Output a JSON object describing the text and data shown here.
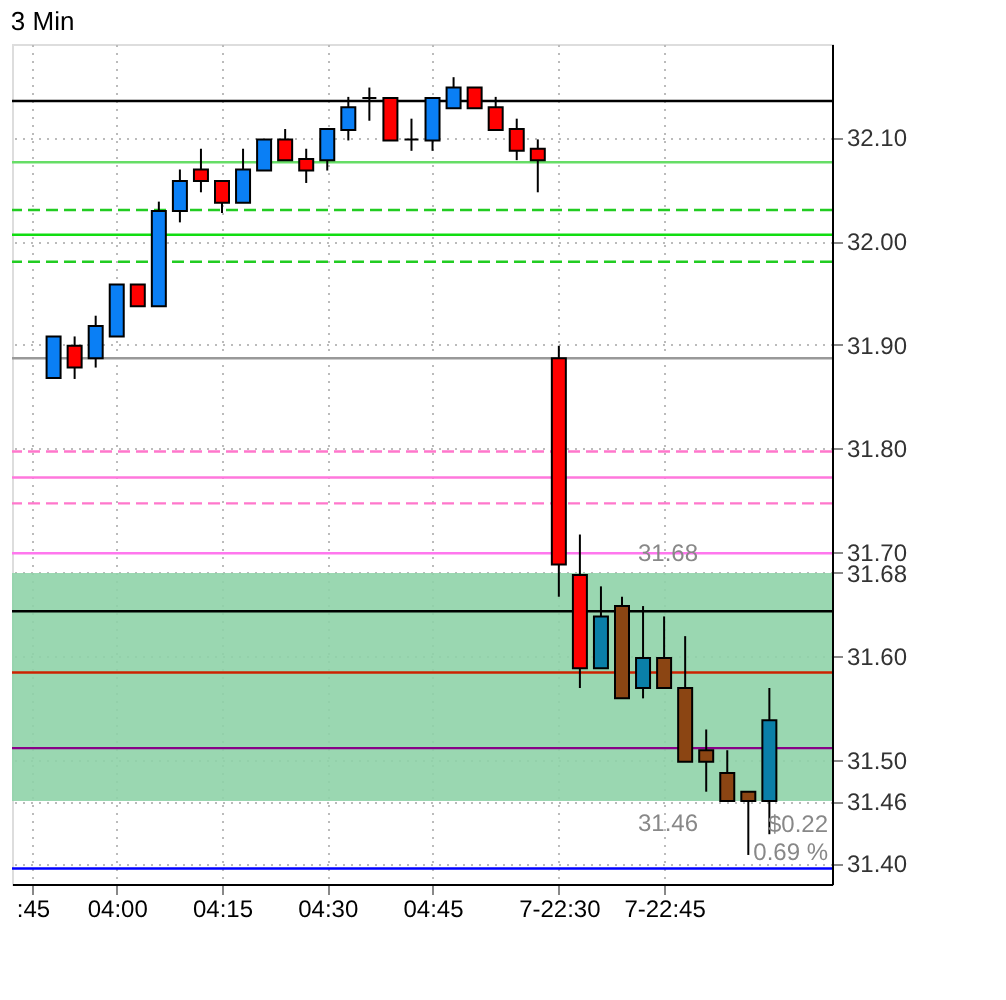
{
  "chart_data": {
    "type": "candlestick",
    "title": "3 Min",
    "categories": [
      ":45",
      null,
      null,
      null,
      "04:00",
      null,
      null,
      null,
      null,
      "04:15",
      null,
      null,
      null,
      null,
      "04:30",
      null,
      null,
      null,
      null,
      "04:45",
      null,
      null,
      null,
      null,
      null,
      "7-22:30",
      null,
      null,
      null,
      null,
      "7-22:45",
      null,
      null,
      null,
      null,
      null,
      null,
      null
    ],
    "ohlc": [
      null,
      [
        31.868,
        31.908,
        31.868,
        31.908
      ],
      [
        31.899,
        31.908,
        31.867,
        31.878
      ],
      [
        31.887,
        31.928,
        31.878,
        31.918
      ],
      [
        31.908,
        31.958,
        31.908,
        31.958
      ],
      [
        31.958,
        31.958,
        31.937,
        31.937
      ],
      [
        31.937,
        32.038,
        31.937,
        32.029
      ],
      [
        32.029,
        32.069,
        32.018,
        32.058
      ],
      [
        32.069,
        32.089,
        32.047,
        32.058
      ],
      [
        32.058,
        32.058,
        32.027,
        32.037
      ],
      [
        32.037,
        32.089,
        32.037,
        32.069
      ],
      [
        32.068,
        32.098,
        32.068,
        32.098
      ],
      [
        32.098,
        32.108,
        32.078,
        32.078
      ],
      [
        32.079,
        32.089,
        32.056,
        32.068
      ],
      [
        32.078,
        32.108,
        32.068,
        32.108
      ],
      [
        32.107,
        32.139,
        32.097,
        32.129
      ],
      [
        32.138,
        32.148,
        32.116,
        32.138
      ],
      [
        32.138,
        32.138,
        32.097,
        32.097
      ],
      [
        32.098,
        32.118,
        32.087,
        32.098
      ],
      [
        32.097,
        32.138,
        32.087,
        32.138
      ],
      [
        32.128,
        32.158,
        32.128,
        32.148
      ],
      [
        32.148,
        32.148,
        32.128,
        32.128
      ],
      [
        32.129,
        32.139,
        32.107,
        32.107
      ],
      [
        32.108,
        32.118,
        32.078,
        32.087
      ],
      [
        32.089,
        32.098,
        32.047,
        32.078
      ],
      [
        31.887,
        31.899,
        31.657,
        31.688
      ],
      [
        31.678,
        31.717,
        31.569,
        31.588
      ],
      [
        31.588,
        31.667,
        31.588,
        31.638
      ],
      [
        31.648,
        31.657,
        31.559,
        31.559
      ],
      [
        31.569,
        31.648,
        31.559,
        31.598
      ],
      [
        31.598,
        31.638,
        31.569,
        31.569
      ],
      [
        31.569,
        31.619,
        31.498,
        31.498
      ],
      [
        31.509,
        31.529,
        31.469,
        31.498
      ],
      [
        31.487,
        31.509,
        31.46,
        31.46
      ],
      [
        31.469,
        31.469,
        31.408,
        31.46
      ],
      [
        31.46,
        31.569,
        31.428,
        31.538
      ],
      null,
      null
    ],
    "colors": [
      null,
      "#0a7ff5",
      "#ff0000",
      "#0a7ff5",
      "#0a7ff5",
      "#ff0000",
      "#0a7ff5",
      "#0a7ff5",
      "#ff0000",
      "#ff0000",
      "#0a7ff5",
      "#0a7ff5",
      "#ff0000",
      "#ff0000",
      "#0a7ff5",
      "#0a7ff5",
      "#000000",
      "#ff0000",
      "#000000",
      "#0a7ff5",
      "#0a7ff5",
      "#ff0000",
      "#ff0000",
      "#ff0000",
      "#ff0000",
      "#ff0000",
      "#ff0000",
      "#0a7fa8",
      "#8b4513",
      "#0a7fa8",
      "#8b4513",
      "#8b4513",
      "#8b4513",
      "#8b4513",
      "#8b4513",
      "#0a7fa8",
      null,
      null
    ],
    "ylim": [
      31.38,
      32.19
    ],
    "yticks": [
      {
        "value": 31.4,
        "label": "31.40"
      },
      {
        "value": 31.46,
        "label": "31.46"
      },
      {
        "value": 31.5,
        "label": "31.50"
      },
      {
        "value": 31.6,
        "label": "31.60"
      },
      {
        "value": 31.68,
        "label": "31.68"
      },
      {
        "value": 31.7,
        "label": "31.70"
      },
      {
        "value": 31.8,
        "label": "31.80"
      },
      {
        "value": 31.9,
        "label": "31.90"
      },
      {
        "value": 32.0,
        "label": "32.00"
      },
      {
        "value": 32.1,
        "label": "32.10"
      }
    ],
    "grid": true,
    "ref_lines": [
      {
        "axis": "y",
        "value": 32.135,
        "color": "#000000",
        "line_style": "solid"
      },
      {
        "axis": "y",
        "value": 32.076,
        "color": "#66dd66",
        "line_style": "solid"
      },
      {
        "axis": "y",
        "value": 32.03,
        "color": "#22cc22",
        "line_style": "dashed"
      },
      {
        "axis": "y",
        "value": 32.006,
        "color": "#11dd11",
        "line_style": "solid"
      },
      {
        "axis": "y",
        "value": 31.98,
        "color": "#22cc22",
        "line_style": "dashed"
      },
      {
        "axis": "y",
        "value": 31.887,
        "color": "#999999",
        "line_style": "solid"
      },
      {
        "axis": "y",
        "value": 31.797,
        "color": "#ff77cc",
        "line_style": "dashed"
      },
      {
        "axis": "y",
        "value": 31.772,
        "color": "#ff77dd",
        "line_style": "solid"
      },
      {
        "axis": "y",
        "value": 31.747,
        "color": "#ff77cc",
        "line_style": "dashed"
      },
      {
        "axis": "y",
        "value": 31.699,
        "color": "#ff77ee",
        "line_style": "solid"
      },
      {
        "axis": "y",
        "value": 31.643,
        "color": "#000000",
        "line_style": "solid"
      },
      {
        "axis": "y",
        "value": 31.584,
        "color": "#cc2200",
        "line_style": "solid"
      },
      {
        "axis": "y",
        "value": 31.511,
        "color": "#880088",
        "line_style": "solid"
      },
      {
        "axis": "y",
        "value": 31.395,
        "color": "#0000ff",
        "line_style": "solid"
      }
    ],
    "bands": [
      {
        "axis": "y",
        "from": 31.46,
        "to": 31.68,
        "color": "#8fd3a8"
      }
    ],
    "annotations": [
      {
        "text": "31.68",
        "y": 31.68
      },
      {
        "text": "31.46",
        "y": 31.46
      },
      "$0.22",
      "0.69 %"
    ]
  }
}
